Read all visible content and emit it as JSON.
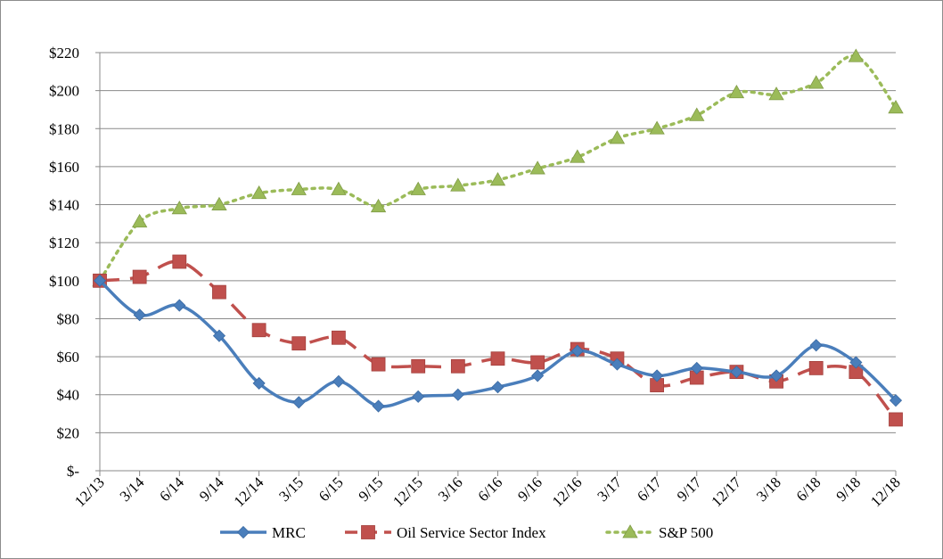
{
  "chart_data": {
    "type": "line",
    "title": "",
    "xlabel": "",
    "ylabel": "",
    "categories": [
      "12/13",
      "3/14",
      "6/14",
      "9/14",
      "12/14",
      "3/15",
      "6/15",
      "9/15",
      "12/15",
      "3/16",
      "6/16",
      "9/16",
      "12/16",
      "3/17",
      "6/17",
      "9/17",
      "12/17",
      "3/18",
      "6/18",
      "9/18",
      "12/18"
    ],
    "y_ticks": [
      "$-",
      "$20",
      "$40",
      "$60",
      "$80",
      "$100",
      "$120",
      "$140",
      "$160",
      "$180",
      "$200",
      "$220"
    ],
    "ylim": [
      0,
      220
    ],
    "grid": true,
    "legend_position": "bottom",
    "series": [
      {
        "name": "MRC",
        "color": "#4a7ebb",
        "marker": "diamond",
        "line_style": "solid",
        "values": [
          100,
          82,
          87,
          71,
          46,
          36,
          47,
          34,
          39,
          40,
          44,
          50,
          63,
          56,
          50,
          54,
          52,
          50,
          66,
          57,
          37
        ]
      },
      {
        "name": "Oil Service Sector Index",
        "color": "#c0504d",
        "marker": "square",
        "line_style": "dashed",
        "values": [
          100,
          102,
          110,
          94,
          74,
          67,
          70,
          56,
          55,
          55,
          59,
          57,
          64,
          59,
          45,
          49,
          52,
          47,
          54,
          52,
          27
        ]
      },
      {
        "name": "S&P 500",
        "color": "#9bbb59",
        "marker": "triangle",
        "line_style": "dotted",
        "values": [
          100,
          131,
          138,
          140,
          146,
          148,
          148,
          139,
          148,
          150,
          153,
          159,
          165,
          175,
          180,
          187,
          199,
          198,
          204,
          218,
          191
        ]
      }
    ]
  }
}
